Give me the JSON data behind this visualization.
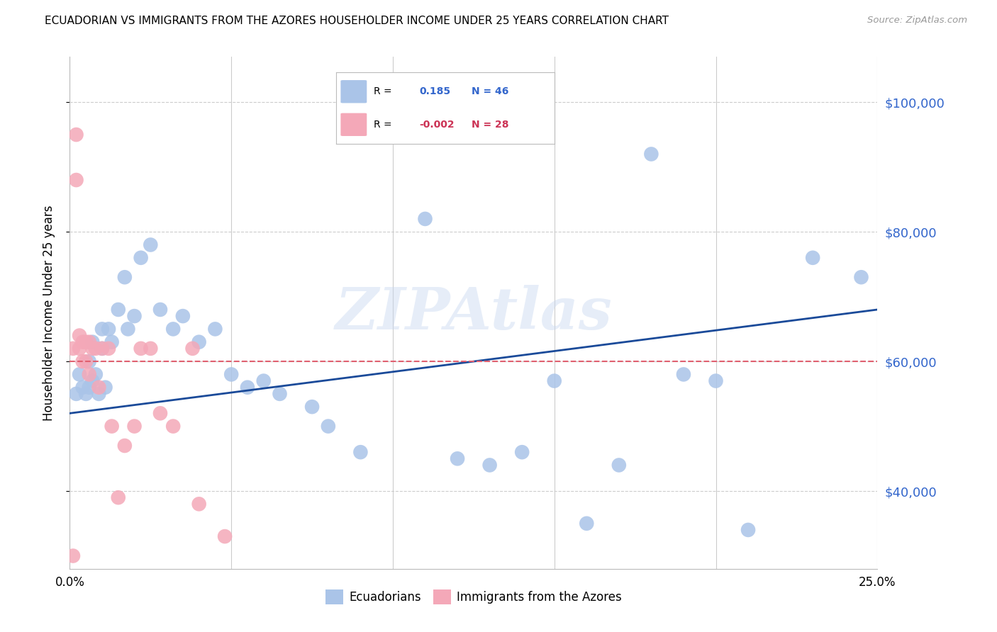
{
  "title": "ECUADORIAN VS IMMIGRANTS FROM THE AZORES HOUSEHOLDER INCOME UNDER 25 YEARS CORRELATION CHART",
  "source": "Source: ZipAtlas.com",
  "ylabel": "Householder Income Under 25 years",
  "xlim": [
    0.0,
    0.25
  ],
  "ylim": [
    28000,
    107000
  ],
  "yticks": [
    40000,
    60000,
    80000,
    100000
  ],
  "ytick_labels": [
    "$40,000",
    "$60,000",
    "$80,000",
    "$100,000"
  ],
  "xticks": [
    0.0,
    0.05,
    0.1,
    0.15,
    0.2,
    0.25
  ],
  "xtick_labels": [
    "0.0%",
    "",
    "",
    "",
    "",
    "25.0%"
  ],
  "blue_R": 0.185,
  "blue_N": 46,
  "pink_R": -0.002,
  "pink_N": 28,
  "blue_color": "#aac4e8",
  "pink_color": "#f4a8b8",
  "blue_line_color": "#1a4a99",
  "pink_line_color": "#e06070",
  "watermark": "ZIPAtlas",
  "blue_points_x": [
    0.002,
    0.003,
    0.004,
    0.005,
    0.006,
    0.006,
    0.007,
    0.007,
    0.008,
    0.009,
    0.01,
    0.01,
    0.011,
    0.012,
    0.013,
    0.015,
    0.017,
    0.018,
    0.02,
    0.022,
    0.025,
    0.028,
    0.032,
    0.035,
    0.04,
    0.045,
    0.05,
    0.055,
    0.06,
    0.065,
    0.075,
    0.08,
    0.09,
    0.11,
    0.12,
    0.13,
    0.14,
    0.15,
    0.16,
    0.17,
    0.18,
    0.19,
    0.2,
    0.21,
    0.23,
    0.245
  ],
  "blue_points_y": [
    55000,
    58000,
    56000,
    55000,
    60000,
    56000,
    63000,
    57000,
    58000,
    55000,
    65000,
    62000,
    56000,
    65000,
    63000,
    68000,
    73000,
    65000,
    67000,
    76000,
    78000,
    68000,
    65000,
    67000,
    63000,
    65000,
    58000,
    56000,
    57000,
    55000,
    53000,
    50000,
    46000,
    82000,
    45000,
    44000,
    46000,
    57000,
    35000,
    44000,
    92000,
    58000,
    57000,
    34000,
    76000,
    73000
  ],
  "pink_points_x": [
    0.001,
    0.002,
    0.002,
    0.003,
    0.003,
    0.004,
    0.004,
    0.005,
    0.005,
    0.006,
    0.006,
    0.007,
    0.008,
    0.009,
    0.01,
    0.012,
    0.013,
    0.015,
    0.017,
    0.02,
    0.022,
    0.025,
    0.028,
    0.032,
    0.038,
    0.04,
    0.048,
    0.001
  ],
  "pink_points_y": [
    62000,
    95000,
    88000,
    64000,
    62000,
    63000,
    60000,
    63000,
    60000,
    63000,
    58000,
    62000,
    62000,
    56000,
    62000,
    62000,
    50000,
    39000,
    47000,
    50000,
    62000,
    62000,
    52000,
    50000,
    62000,
    38000,
    33000,
    30000
  ],
  "blue_trend_x": [
    0.0,
    0.25
  ],
  "blue_trend_y": [
    52000,
    68000
  ],
  "pink_trend_x": [
    0.0,
    0.25
  ],
  "pink_trend_y": [
    60000,
    60000
  ]
}
